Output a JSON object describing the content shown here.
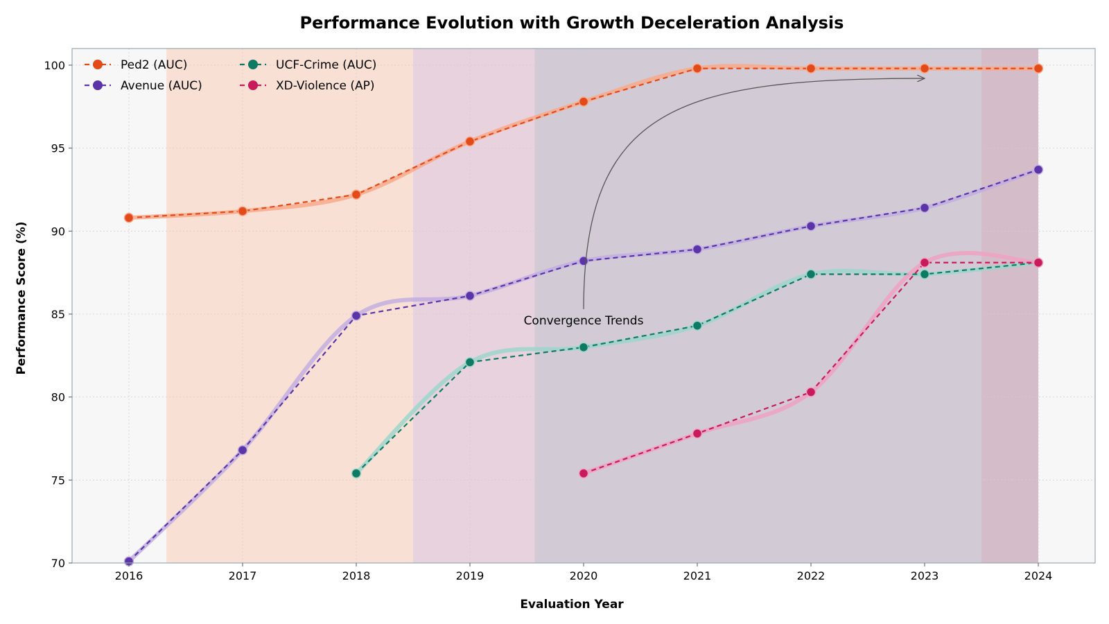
{
  "chart_data": {
    "type": "line",
    "title": "Performance Evolution with Growth Deceleration Analysis",
    "xlabel": "Evaluation Year",
    "ylabel": "Performance Score (%)",
    "xlim": [
      2015.5,
      2024.5
    ],
    "ylim": [
      70,
      101
    ],
    "x_ticks": [
      2016,
      2017,
      2018,
      2019,
      2020,
      2021,
      2022,
      2023,
      2024
    ],
    "y_ticks": [
      70,
      75,
      80,
      85,
      90,
      95,
      100
    ],
    "grid": true,
    "legend_position": "top-left",
    "series": [
      {
        "name": "Ped2 (AUC)",
        "color": "#E34A1A",
        "smooth_color": "#F9A98B",
        "x": [
          2016,
          2017,
          2018,
          2019,
          2020,
          2021,
          2022,
          2023,
          2024
        ],
        "values": [
          90.8,
          91.2,
          92.2,
          95.4,
          97.8,
          99.8,
          99.8,
          99.8,
          99.8
        ]
      },
      {
        "name": "Avenue (AUC)",
        "color": "#5B34A8",
        "smooth_color": "#C2AEE0",
        "x": [
          2016,
          2017,
          2018,
          2019,
          2020,
          2021,
          2022,
          2023,
          2024
        ],
        "values": [
          70.1,
          76.8,
          84.9,
          86.1,
          88.2,
          88.9,
          90.3,
          91.4,
          93.7
        ]
      },
      {
        "name": "UCF-Crime (AUC)",
        "color": "#0E7A64",
        "smooth_color": "#9ED6CC",
        "x": [
          2018,
          2019,
          2020,
          2021,
          2022,
          2023,
          2024
        ],
        "values": [
          75.4,
          82.1,
          83.0,
          84.3,
          87.4,
          87.4,
          88.1
        ]
      },
      {
        "name": "XD-Violence (AP)",
        "color": "#C71B5B",
        "smooth_color": "#F0A2C2",
        "x": [
          2020,
          2021,
          2022,
          2023,
          2024
        ],
        "values": [
          75.4,
          77.8,
          80.3,
          88.1,
          88.1
        ]
      }
    ],
    "shaded_regions": [
      {
        "x_start": 2016.33,
        "x_end": 2018.5,
        "color": "#F8D8C8"
      },
      {
        "x_start": 2018.5,
        "x_end": 2019.57,
        "color": "#E2C6D6"
      },
      {
        "x_start": 2019.57,
        "x_end": 2023.5,
        "color": "#C6BCCB"
      },
      {
        "x_start": 2023.5,
        "x_end": 2024.0,
        "color": "#C9A8BA"
      }
    ],
    "annotations": [
      {
        "text": "Convergence Trends",
        "x": 2020.0,
        "y": 85.3,
        "arrow_to": [
          2023.0,
          99.2
        ]
      }
    ]
  }
}
